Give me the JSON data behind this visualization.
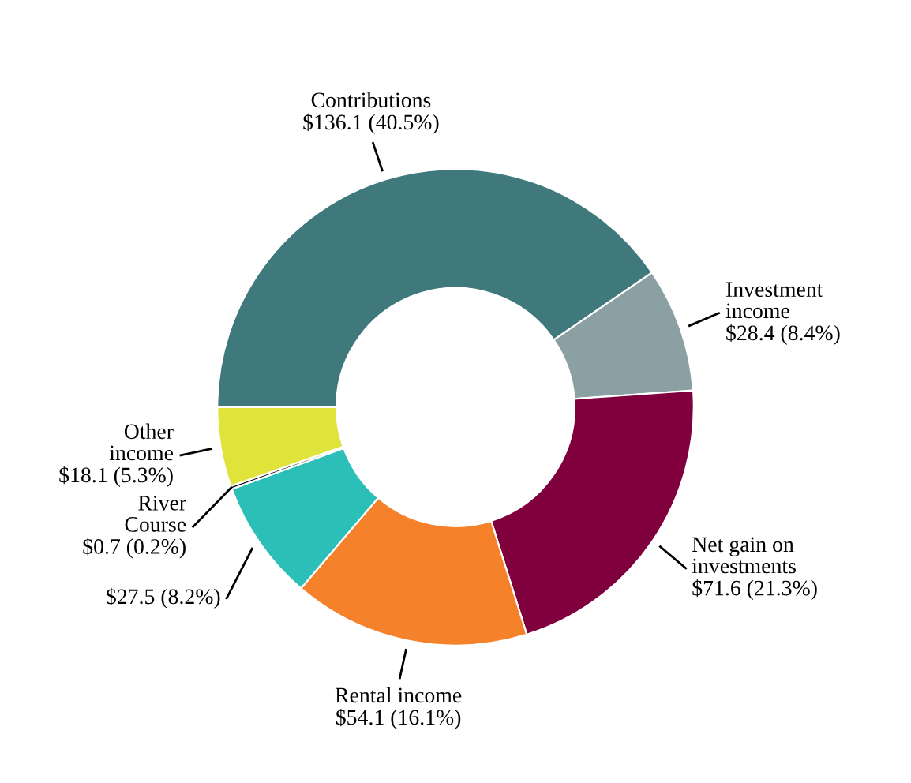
{
  "chart_data": {
    "type": "donut",
    "categories": [
      "Contributions",
      "Investment income",
      "Net gain on investments",
      "Rental income",
      null,
      "River Course",
      "Other income"
    ],
    "values": [
      136.1,
      28.4,
      71.6,
      54.1,
      27.5,
      0.7,
      18.1
    ],
    "value_labels": [
      "$136.1 (40.5%)",
      "$28.4 (8.4%)",
      "$71.6 (21.3%)",
      "$54.1 (16.1%)",
      "$27.5 (8.2%)",
      "$0.7 (0.2%)",
      "$18.1 (5.3%)"
    ],
    "colors": [
      "#40797b",
      "#8aa0a3",
      "#7f003d",
      "#f5822a",
      "#2bbfb8",
      "#1a1a1a",
      "#e0e33a"
    ],
    "legend": false
  }
}
